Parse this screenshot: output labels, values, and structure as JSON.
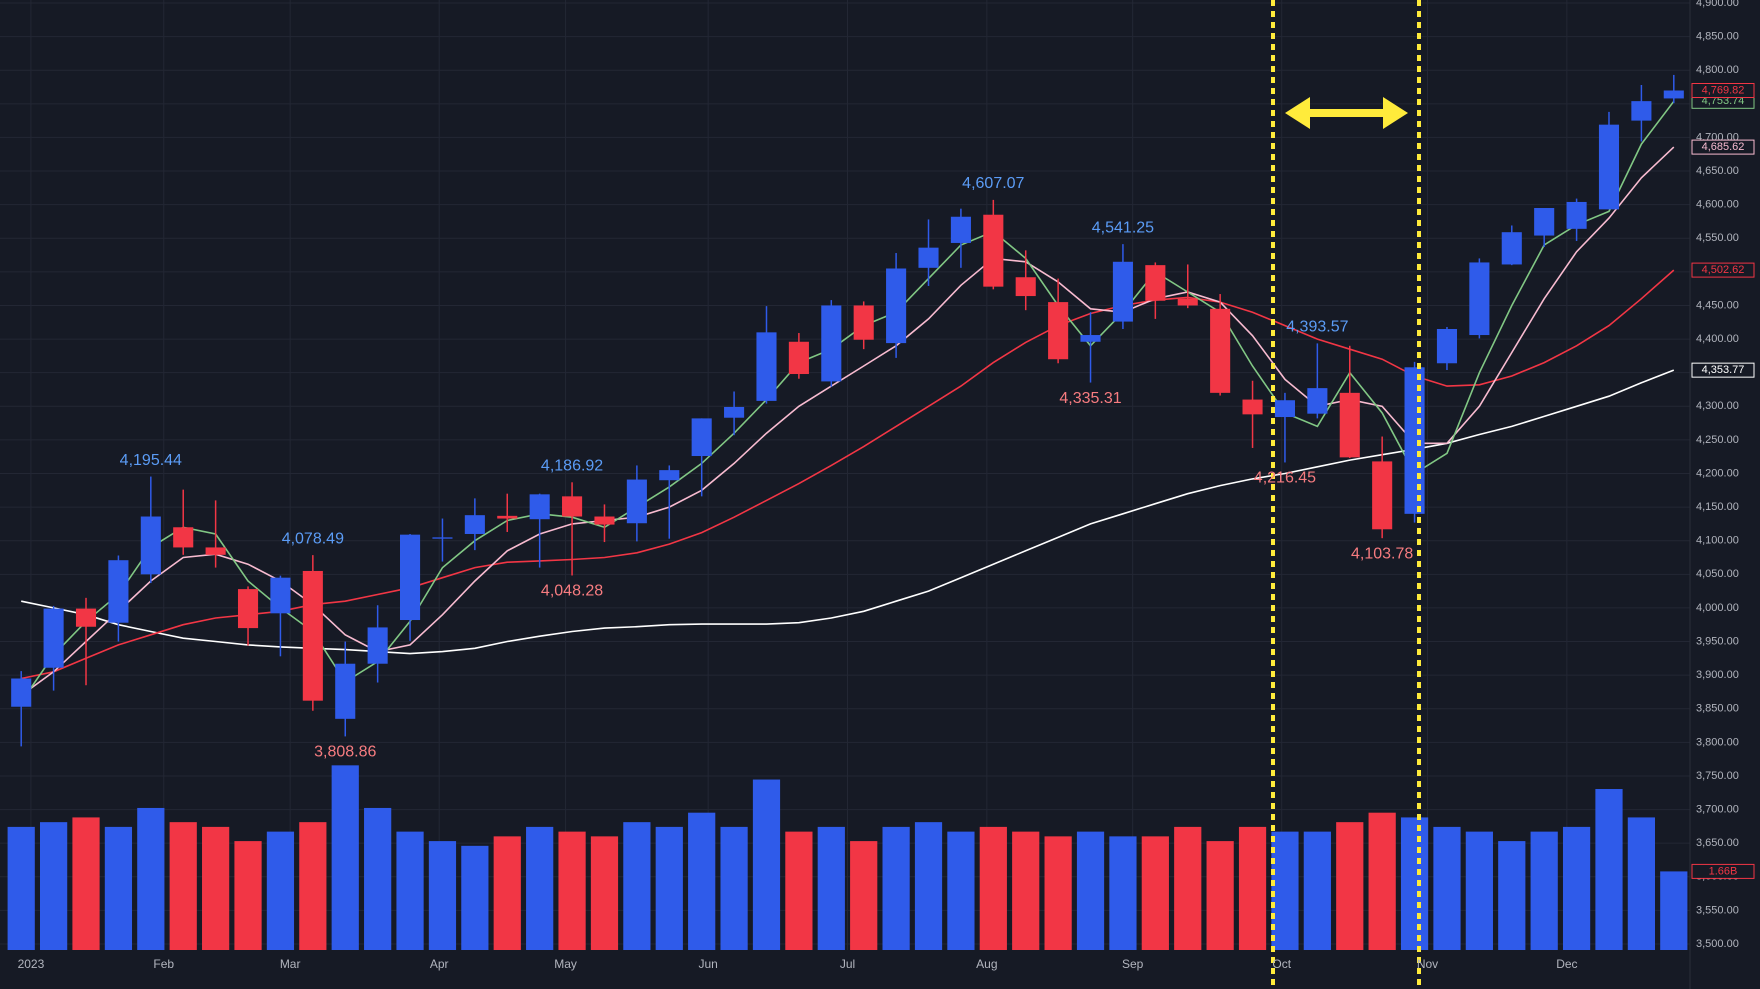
{
  "chart_data": {
    "type": "candlestick",
    "up_color": "#2f5bea",
    "down_color": "#f23645",
    "grid": true,
    "ylim": [
      3500,
      4900
    ],
    "vlim": [
      0,
      20
    ],
    "yticks": [
      {
        "value": 3500,
        "label": "3,500.00"
      },
      {
        "value": 3550,
        "label": "3,550.00"
      },
      {
        "value": 3600,
        "label": "3,600.00"
      },
      {
        "value": 3650,
        "label": "3,650.00"
      },
      {
        "value": 3700,
        "label": "3,700.00"
      },
      {
        "value": 3750,
        "label": "3,750.00"
      },
      {
        "value": 3800,
        "label": "3,800.00"
      },
      {
        "value": 3850,
        "label": "3,850.00"
      },
      {
        "value": 3900,
        "label": "3,900.00"
      },
      {
        "value": 3950,
        "label": "3,950.00"
      },
      {
        "value": 4000,
        "label": "4,000.00"
      },
      {
        "value": 4050,
        "label": "4,050.00"
      },
      {
        "value": 4100,
        "label": "4,100.00"
      },
      {
        "value": 4150,
        "label": "4,150.00"
      },
      {
        "value": 4200,
        "label": "4,200.00"
      },
      {
        "value": 4250,
        "label": "4,250.00"
      },
      {
        "value": 4300,
        "label": "4,300.00"
      },
      {
        "value": 4350,
        "label": "4,350.00"
      },
      {
        "value": 4400,
        "label": "4,400.00"
      },
      {
        "value": 4450,
        "label": "4,450.00"
      },
      {
        "value": 4500,
        "label": "4,500.00"
      },
      {
        "value": 4550,
        "label": "4,550.00"
      },
      {
        "value": 4600,
        "label": "4,600.00"
      },
      {
        "value": 4650,
        "label": "4,650.00"
      },
      {
        "value": 4700,
        "label": "4,700.00"
      },
      {
        "value": 4750,
        "label": "4,750.00"
      },
      {
        "value": 4800,
        "label": "4,800.00"
      },
      {
        "value": 4850,
        "label": "4,850.00"
      },
      {
        "value": 4900,
        "label": "4,900.00"
      }
    ],
    "xticks": [
      {
        "value": 0.3,
        "label": "2023"
      },
      {
        "value": 4.4,
        "label": "Feb"
      },
      {
        "value": 8.3,
        "label": "Mar"
      },
      {
        "value": 12.9,
        "label": "Apr"
      },
      {
        "value": 16.8,
        "label": "May"
      },
      {
        "value": 21.2,
        "label": "Jun"
      },
      {
        "value": 25.5,
        "label": "Jul"
      },
      {
        "value": 29.8,
        "label": "Aug"
      },
      {
        "value": 34.3,
        "label": "Sep"
      },
      {
        "value": 38.9,
        "label": "Oct"
      },
      {
        "value": 43.4,
        "label": "Nov"
      },
      {
        "value": 47.7,
        "label": "Dec"
      }
    ],
    "candles": {
      "open": [
        3853,
        3911,
        3999,
        3978,
        4050,
        4120,
        4090,
        4028,
        3992,
        4055,
        3835,
        3917,
        3982,
        4103,
        4110,
        4137,
        4132,
        4166,
        4136,
        4126,
        4190,
        4226,
        4283,
        4308,
        4396,
        4337,
        4450,
        4394,
        4506,
        4543,
        4585,
        4492,
        4455,
        4396,
        4426,
        4510,
        4460,
        4445,
        4310,
        4284,
        4289,
        4320,
        4218,
        4140,
        4364,
        4406,
        4511,
        4554,
        4564,
        4593,
        4725,
        4758
      ],
      "high": [
        3906,
        4003,
        4015,
        4078,
        4195.44,
        4176,
        4160,
        4032,
        4048,
        4078.49,
        3950,
        4004,
        4110,
        4133,
        4163,
        4170,
        4170,
        4186.92,
        4154,
        4212,
        4212,
        4282,
        4322,
        4449,
        4409,
        4458,
        4456,
        4528,
        4578,
        4594,
        4607.07,
        4532,
        4490,
        4440,
        4541.25,
        4514,
        4511,
        4467,
        4338,
        4320,
        4393.57,
        4390,
        4255,
        4366,
        4418,
        4520,
        4569,
        4595,
        4609,
        4738,
        4778,
        4793
      ],
      "low": [
        3794,
        3877,
        3885,
        3950,
        4037,
        4079,
        4060,
        3944,
        3928,
        3847,
        3808.86,
        3889,
        3951,
        4069,
        4086,
        4113,
        4060,
        4048.28,
        4098,
        4099,
        4103,
        4166,
        4257,
        4304,
        4341,
        4329,
        4385,
        4372,
        4479,
        4506,
        4474,
        4443,
        4364,
        4335.31,
        4415,
        4430,
        4446,
        4316,
        4238,
        4216.45,
        4282,
        4223,
        4103.78,
        4127,
        4354,
        4401,
        4510,
        4537,
        4546,
        4593,
        4694,
        4751
      ],
      "close": [
        3895,
        3999,
        3972,
        4071,
        4136,
        4090,
        4079,
        3970,
        4045,
        3862,
        3917,
        3971,
        4109,
        4105,
        4138,
        4133,
        4169,
        4136,
        4124,
        4191,
        4205,
        4282,
        4299,
        4410,
        4348,
        4450,
        4399,
        4505,
        4536,
        4582,
        4478,
        4464,
        4370,
        4406,
        4515,
        4457,
        4450,
        4320,
        4288,
        4309,
        4327,
        4224,
        4117,
        4358,
        4415,
        4514,
        4559,
        4595,
        4604,
        4719,
        4754,
        4769.82
      ]
    },
    "last_price_label": "4,769.82",
    "volume": {
      "values": [
        2.6,
        2.7,
        2.8,
        2.6,
        3.0,
        2.7,
        2.6,
        2.3,
        2.5,
        2.7,
        3.9,
        3.0,
        2.5,
        2.3,
        2.2,
        2.4,
        2.6,
        2.5,
        2.4,
        2.7,
        2.6,
        2.9,
        2.6,
        3.6,
        2.5,
        2.6,
        2.3,
        2.6,
        2.7,
        2.5,
        2.6,
        2.5,
        2.4,
        2.5,
        2.4,
        2.4,
        2.6,
        2.3,
        2.6,
        2.5,
        2.5,
        2.7,
        2.9,
        2.8,
        2.6,
        2.5,
        2.3,
        2.5,
        2.6,
        3.4,
        2.8,
        1.66
      ],
      "last_label": "1.66B"
    },
    "series": [
      {
        "color": "#ffffff",
        "last_label": "4,353.77",
        "values": [
          4010,
          4000,
          3990,
          3975,
          3965,
          3955,
          3950,
          3945,
          3942,
          3940,
          3938,
          3935,
          3932,
          3935,
          3940,
          3950,
          3958,
          3965,
          3970,
          3972,
          3975,
          3976,
          3976,
          3976,
          3978,
          3985,
          3995,
          4010,
          4025,
          4045,
          4065,
          4085,
          4105,
          4125,
          4140,
          4155,
          4170,
          4182,
          4192,
          4200,
          4210,
          4220,
          4228,
          4236,
          4245,
          4258,
          4270,
          4285,
          4300,
          4315,
          4335,
          4353.77
        ]
      },
      {
        "color": "#f23645",
        "last_label": "4,502.62",
        "values": [
          3895,
          3905,
          3925,
          3945,
          3960,
          3975,
          3985,
          3990,
          3995,
          4005,
          4010,
          4020,
          4030,
          4045,
          4060,
          4068,
          4070,
          4072,
          4075,
          4082,
          4095,
          4112,
          4135,
          4160,
          4185,
          4212,
          4240,
          4270,
          4300,
          4330,
          4365,
          4395,
          4420,
          4438,
          4450,
          4458,
          4462,
          4455,
          4440,
          4420,
          4400,
          4385,
          4370,
          4345,
          4330,
          4332,
          4345,
          4365,
          4390,
          4420,
          4460,
          4502.62
        ]
      },
      {
        "color": "#f8bbd0",
        "last_label": "4,685.62",
        "values": [
          3870,
          3905,
          3950,
          3995,
          4040,
          4075,
          4080,
          4065,
          4040,
          4005,
          3960,
          3935,
          3945,
          3990,
          4040,
          4085,
          4110,
          4125,
          4130,
          4135,
          4150,
          4175,
          4215,
          4260,
          4300,
          4330,
          4360,
          4390,
          4430,
          4480,
          4520,
          4515,
          4485,
          4445,
          4440,
          4460,
          4470,
          4455,
          4405,
          4340,
          4300,
          4310,
          4300,
          4245,
          4245,
          4300,
          4380,
          4460,
          4530,
          4580,
          4640,
          4685.62
        ]
      },
      {
        "color": "#81c784",
        "last_label": "4,753.74",
        "values": [
          3860,
          3930,
          3980,
          4020,
          4090,
          4120,
          4110,
          4040,
          4000,
          3965,
          3890,
          3920,
          3980,
          4060,
          4100,
          4130,
          4140,
          4135,
          4120,
          4150,
          4180,
          4215,
          4260,
          4310,
          4365,
          4385,
          4420,
          4440,
          4490,
          4540,
          4560,
          4520,
          4450,
          4390,
          4440,
          4500,
          4470,
          4440,
          4360,
          4290,
          4270,
          4350,
          4290,
          4200,
          4230,
          4350,
          4450,
          4540,
          4570,
          4590,
          4690,
          4753.74
        ]
      }
    ],
    "annotations": [
      {
        "index": 4,
        "value": 4195.44,
        "label": "4,195.44",
        "kind": "high"
      },
      {
        "index": 9,
        "value": 4078.49,
        "label": "4,078.49",
        "kind": "high"
      },
      {
        "index": 17,
        "value": 4186.92,
        "label": "4,186.92",
        "kind": "high"
      },
      {
        "index": 30,
        "value": 4607.07,
        "label": "4,607.07",
        "kind": "high"
      },
      {
        "index": 34,
        "value": 4541.25,
        "label": "4,541.25",
        "kind": "high"
      },
      {
        "index": 40,
        "value": 4393.57,
        "label": "4,393.57",
        "kind": "high"
      },
      {
        "index": 10,
        "value": 3808.86,
        "label": "3,808.86",
        "kind": "low"
      },
      {
        "index": 17,
        "value": 4048.28,
        "label": "4,048.28",
        "kind": "low"
      },
      {
        "index": 33,
        "value": 4335.31,
        "label": "4,335.31",
        "kind": "low"
      },
      {
        "index": 39,
        "value": 4216.45,
        "label": "4,216.45",
        "kind": "low"
      },
      {
        "index": 42,
        "value": 4103.78,
        "label": "4,103.78",
        "kind": "low"
      }
    ]
  }
}
